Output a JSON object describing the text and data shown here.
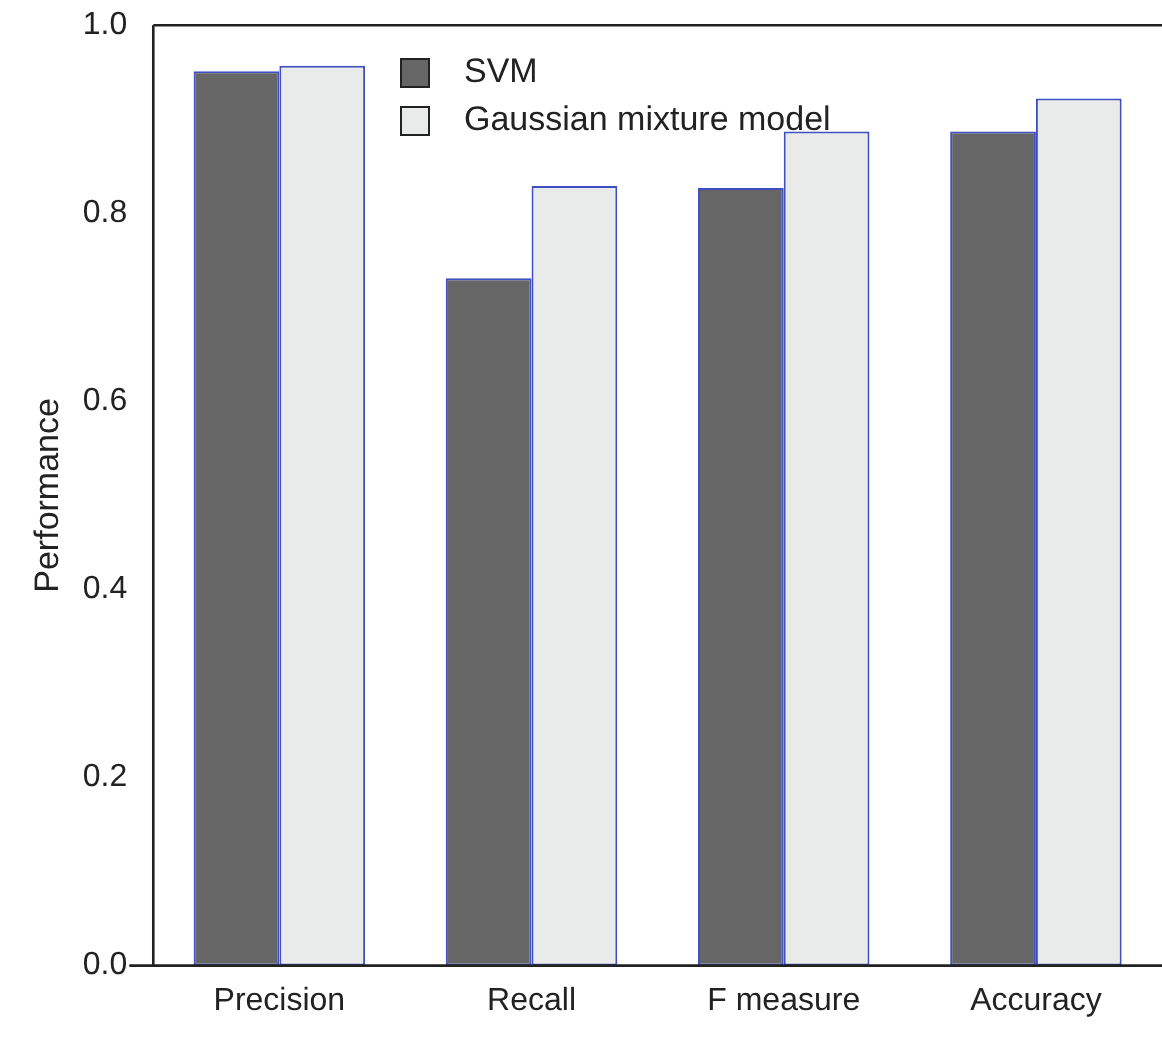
{
  "chart_data": {
    "type": "bar",
    "ylabel": "Performance",
    "categories": [
      "Precision",
      "Recall",
      "F measure",
      "Accuracy"
    ],
    "series": [
      {
        "name": "SVM",
        "color": "#666666",
        "values": [
          0.951,
          0.731,
          0.827,
          0.887
        ]
      },
      {
        "name": "Gaussian mixture model",
        "color": "#e9eaea",
        "values": [
          0.957,
          0.829,
          0.887,
          0.922
        ]
      }
    ],
    "ylim": [
      0,
      1
    ],
    "yticks": [
      {
        "value": 0,
        "label": "0.0"
      },
      {
        "value": 0.2,
        "label": "0.2"
      },
      {
        "value": 0.4,
        "label": "0.4"
      },
      {
        "value": 0.6,
        "label": "0.6"
      },
      {
        "value": 0.8,
        "label": "0.8"
      },
      {
        "value": 1,
        "label": "1.0"
      }
    ],
    "grid": false,
    "legend": "top"
  }
}
